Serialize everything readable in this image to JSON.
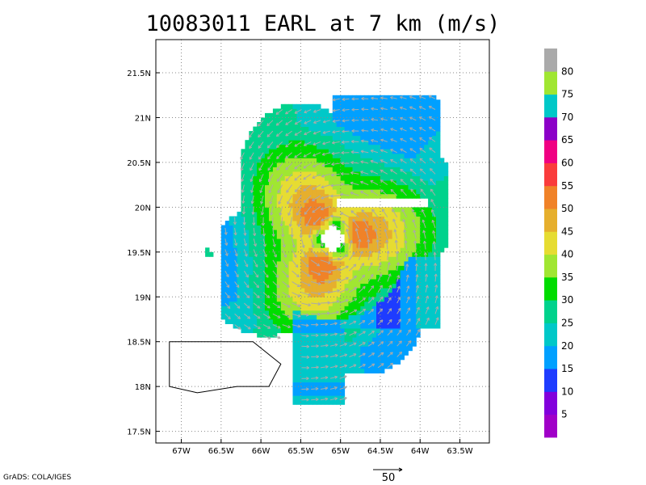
{
  "title": "10083011 EARL at 7 km (m/s)",
  "credit": "GrADS: COLA/IGES",
  "vector_reference": {
    "label": "50",
    "speed_ms": 50
  },
  "chart_data": {
    "type": "heatmap",
    "title": "10083011 EARL at 7 km (m/s)",
    "variable": "wind speed",
    "units": "m/s",
    "storm_name": "EARL",
    "level_km": 7,
    "x_ticks": [
      {
        "value": -67.0,
        "label": "67W"
      },
      {
        "value": -66.5,
        "label": "66.5W"
      },
      {
        "value": -66.0,
        "label": "66W"
      },
      {
        "value": -65.5,
        "label": "65.5W"
      },
      {
        "value": -65.0,
        "label": "65W"
      },
      {
        "value": -64.5,
        "label": "64.5W"
      },
      {
        "value": -64.0,
        "label": "64W"
      },
      {
        "value": -63.5,
        "label": "63.5W"
      }
    ],
    "y_ticks": [
      {
        "value": 17.5,
        "label": "17.5N"
      },
      {
        "value": 18.0,
        "label": "18N"
      },
      {
        "value": 18.5,
        "label": "18.5N"
      },
      {
        "value": 19.0,
        "label": "19N"
      },
      {
        "value": 19.5,
        "label": "19.5N"
      },
      {
        "value": 20.0,
        "label": "20N"
      },
      {
        "value": 20.5,
        "label": "20.5N"
      },
      {
        "value": 21.0,
        "label": "21N"
      },
      {
        "value": 21.5,
        "label": "21.5N"
      }
    ],
    "xlim": [
      -67.32,
      -63.13
    ],
    "ylim": [
      17.37,
      21.87
    ],
    "grid": true,
    "colorbar": {
      "labels": [
        "5",
        "10",
        "15",
        "20",
        "25",
        "30",
        "35",
        "40",
        "45",
        "50",
        "55",
        "60",
        "65",
        "70",
        "75",
        "80"
      ],
      "colors": [
        "#a000c8",
        "#8200dc",
        "#1e3cff",
        "#00a0ff",
        "#00c8c8",
        "#00d28c",
        "#00dc00",
        "#a0e632",
        "#e6dc32",
        "#e6af2d",
        "#f08228",
        "#fa3c3c",
        "#f00082",
        "#8c00c8",
        "#00c8c8",
        "#a0e632",
        "#aaaaaa"
      ]
    },
    "storm_center": {
      "lon": -65.1,
      "lat": 19.65
    },
    "max_wind_ms": 55,
    "coastline_puerto_rico": [
      [
        -67.15,
        18.5
      ],
      [
        -66.1,
        18.5
      ],
      [
        -65.75,
        18.25
      ],
      [
        -65.9,
        18.0
      ],
      [
        -66.3,
        18.0
      ],
      [
        -66.8,
        17.93
      ],
      [
        -67.15,
        18.0
      ],
      [
        -67.15,
        18.5
      ]
    ]
  }
}
